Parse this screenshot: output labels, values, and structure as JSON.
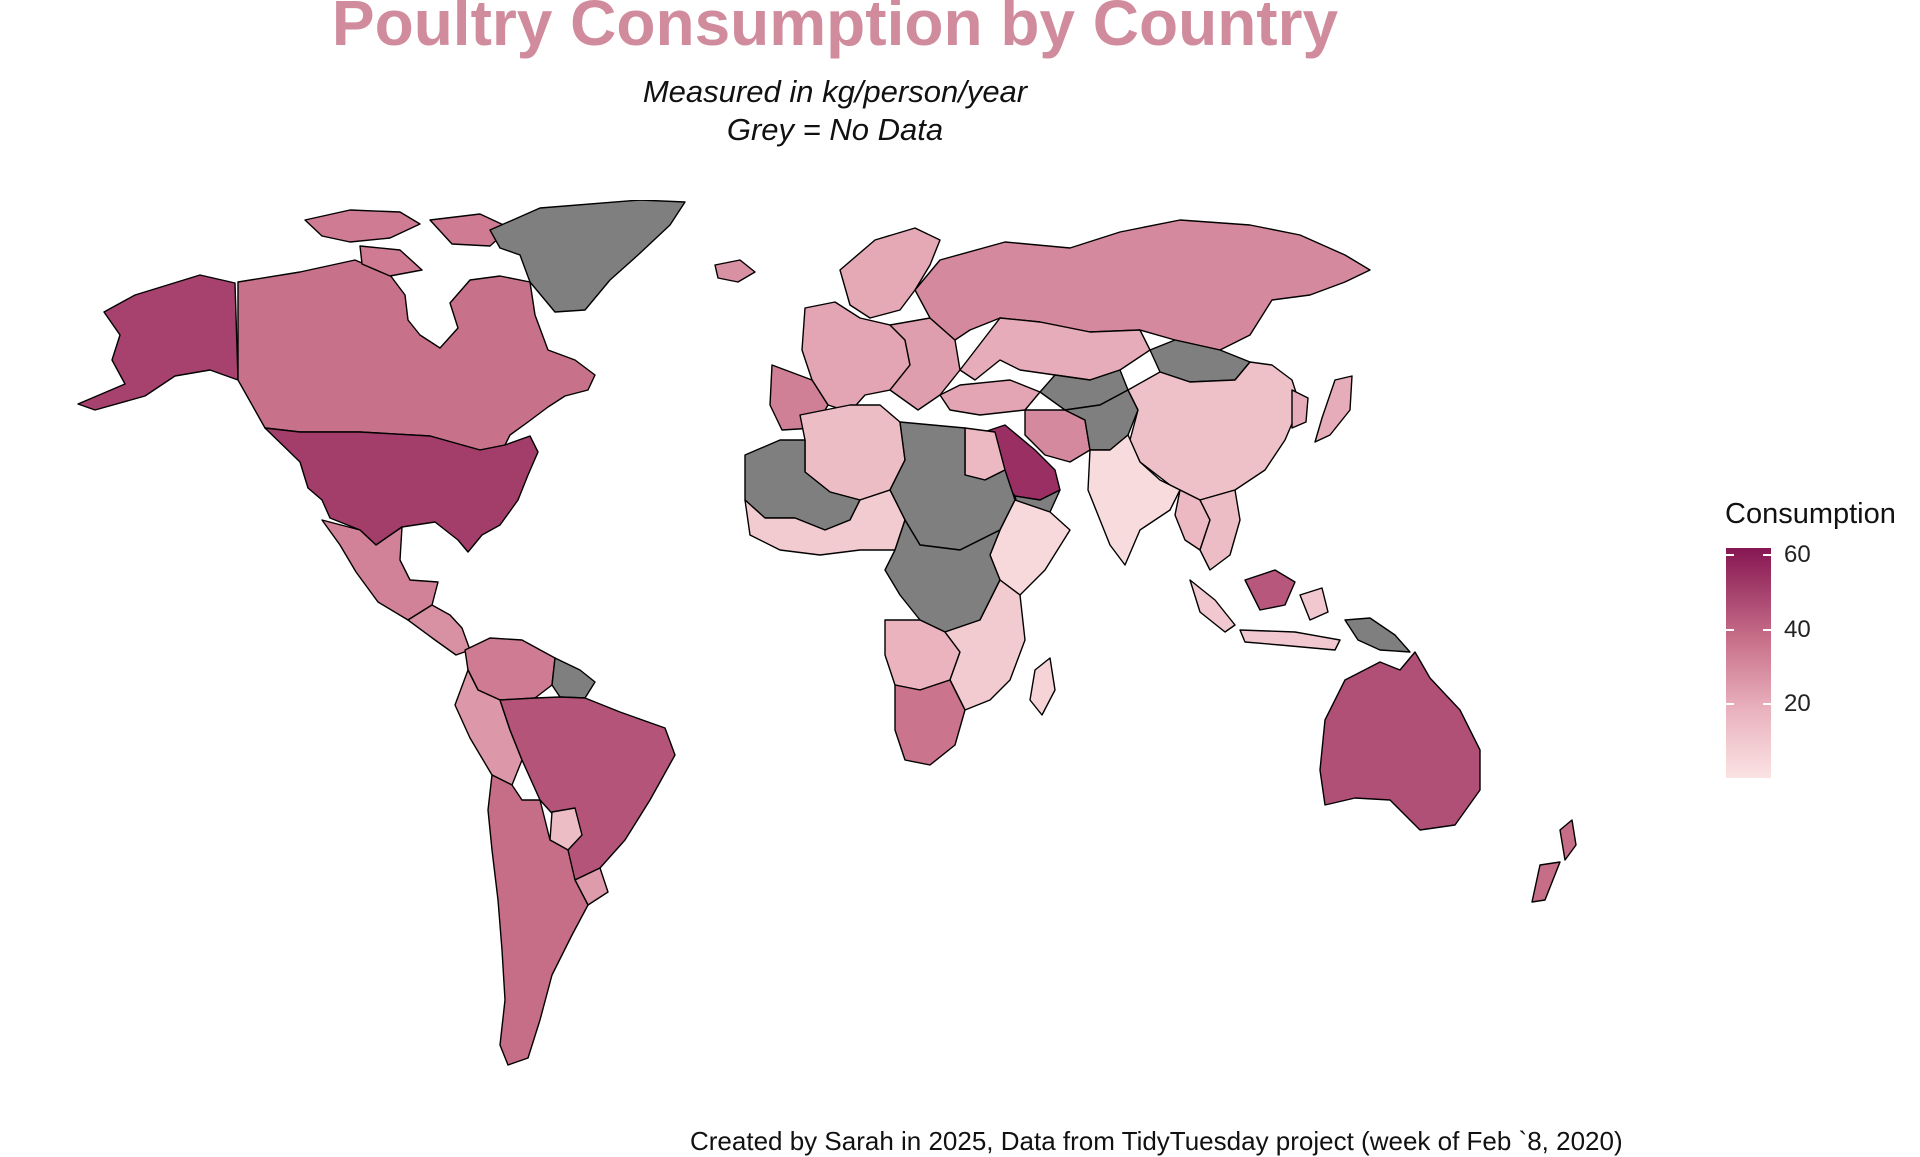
{
  "title": "Poultry Consumption by Country",
  "subtitle_line1": "Measured in kg/person/year",
  "subtitle_line2": "Grey = No Data",
  "caption": "Created by Sarah in 2025, Data from TidyTuesday project (week of Feb `8, 2020)",
  "colors": {
    "title": "#d08b9c",
    "no_data": "#7f7f7f",
    "low": "#fbe3e3",
    "high": "#861652",
    "border": "#000000"
  },
  "chart_data": {
    "type": "choropleth",
    "variable": "Consumption",
    "unit": "kg/person/year",
    "legend": {
      "title": "Consumption",
      "position": "right",
      "range": [
        0,
        62
      ],
      "ticks": [
        20,
        40,
        60
      ],
      "tick_labels": [
        "20",
        "40",
        "60"
      ]
    },
    "no_data_color": "#7f7f7f",
    "regions": [
      {
        "id": "alaska",
        "value": 50
      },
      {
        "id": "canada",
        "value": 37
      },
      {
        "id": "usa",
        "value": 51
      },
      {
        "id": "mexico",
        "value": 32
      },
      {
        "id": "central-america",
        "value": 28
      },
      {
        "id": "colombia-venezuela",
        "value": 34
      },
      {
        "id": "guyana",
        "value": null
      },
      {
        "id": "peru",
        "value": 26
      },
      {
        "id": "chile-argentina",
        "value": 38
      },
      {
        "id": "brazil",
        "value": 45
      },
      {
        "id": "paraguay",
        "value": 14
      },
      {
        "id": "uruguay",
        "value": 25
      },
      {
        "id": "greenland",
        "value": null
      },
      {
        "id": "iceland",
        "value": 28
      },
      {
        "id": "arctic-islands",
        "value": 34
      },
      {
        "id": "scandinavia",
        "value": 21
      },
      {
        "id": "western-europe",
        "value": 22
      },
      {
        "id": "iberia",
        "value": 33
      },
      {
        "id": "eastern-europe",
        "value": 24
      },
      {
        "id": "russia",
        "value": 30
      },
      {
        "id": "kazakhstan",
        "value": 20
      },
      {
        "id": "mongolia",
        "value": null
      },
      {
        "id": "china",
        "value": 13
      },
      {
        "id": "korea",
        "value": 20
      },
      {
        "id": "japan",
        "value": 20
      },
      {
        "id": "turkey",
        "value": 22
      },
      {
        "id": "iran",
        "value": 30
      },
      {
        "id": "central-asia",
        "value": null
      },
      {
        "id": "afghanistan-pakistan",
        "value": null
      },
      {
        "id": "saudi-arabia",
        "value": 55
      },
      {
        "id": "yemen",
        "value": null
      },
      {
        "id": "india",
        "value": 3
      },
      {
        "id": "southeast-asia",
        "value": 14
      },
      {
        "id": "myanmar-thailand",
        "value": 16
      },
      {
        "id": "indonesia",
        "value": 10
      },
      {
        "id": "malaysia-borneo",
        "value": 44
      },
      {
        "id": "papua-new-guinea",
        "value": null
      },
      {
        "id": "australia",
        "value": 46
      },
      {
        "id": "new-zealand",
        "value": 38
      },
      {
        "id": "north-africa",
        "value": 14
      },
      {
        "id": "egypt",
        "value": 16
      },
      {
        "id": "libya-chad-sudan",
        "value": null
      },
      {
        "id": "sahel-west",
        "value": null
      },
      {
        "id": "west-africa",
        "value": 9
      },
      {
        "id": "horn-africa",
        "value": 4
      },
      {
        "id": "central-africa",
        "value": null
      },
      {
        "id": "angola-zambia",
        "value": 18
      },
      {
        "id": "east-south-africa",
        "value": 9
      },
      {
        "id": "south-africa",
        "value": 36
      },
      {
        "id": "madagascar",
        "value": 6
      }
    ]
  }
}
